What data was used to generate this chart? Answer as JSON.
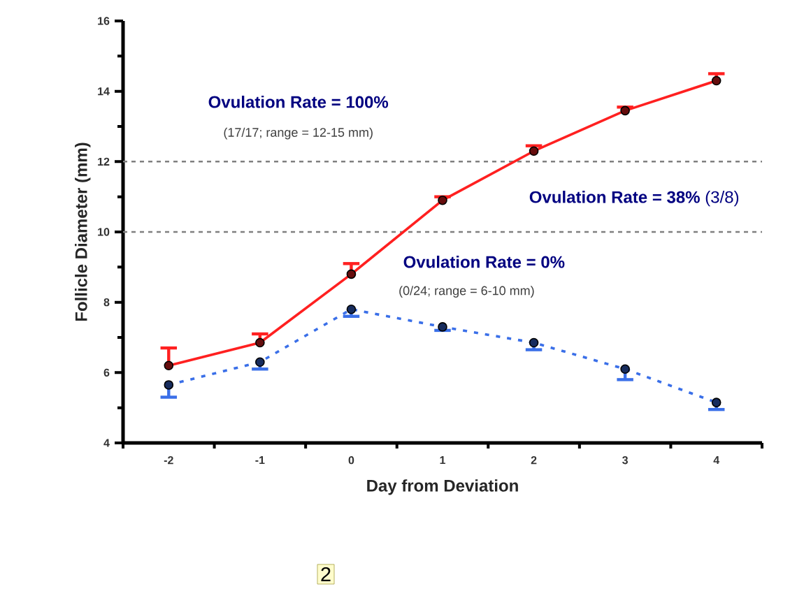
{
  "chart_data": {
    "type": "line",
    "xlabel": "Day from Deviation",
    "ylabel": "Follicle Diameter (mm)",
    "categories": [
      "-2",
      "-1",
      "0",
      "1",
      "2",
      "3",
      "4"
    ],
    "ylim": [
      4,
      16
    ],
    "yticks": [
      4,
      6,
      8,
      10,
      12,
      14,
      16
    ],
    "marker": "circle",
    "series": [
      {
        "color": "#ff2020",
        "line_style": "solid",
        "values": [
          6.2,
          6.85,
          8.8,
          10.9,
          12.3,
          13.45,
          14.3
        ],
        "errors": [
          [
            6.2,
            6.7
          ],
          [
            6.85,
            7.1
          ],
          [
            8.8,
            9.1
          ],
          [
            10.9,
            11.0
          ],
          [
            12.3,
            12.45
          ],
          [
            13.45,
            13.55
          ],
          [
            14.3,
            14.5
          ]
        ]
      },
      {
        "color": "#3a6fe8",
        "line_style": "dotted",
        "values": [
          5.65,
          6.3,
          7.8,
          7.3,
          6.85,
          6.1,
          5.15
        ],
        "errors": [
          [
            5.3,
            5.65
          ],
          [
            6.1,
            6.3
          ],
          [
            7.6,
            7.8
          ],
          [
            7.2,
            7.3
          ],
          [
            6.65,
            6.85
          ],
          [
            5.8,
            6.1
          ],
          [
            4.95,
            5.15
          ]
        ]
      }
    ],
    "ref_lines": [
      {
        "axis": "y",
        "value": 12,
        "color": "#808080",
        "line_style": "dashed"
      },
      {
        "axis": "y",
        "value": 10,
        "color": "#808080",
        "line_style": "dashed"
      }
    ],
    "annotations": [
      "Ovulation Rate = 100%",
      "(17/17; range = 12-15 mm)",
      "**Ovulation Rate = 38%** (3/8)",
      "Ovulation Rate = 0%",
      "(0/24; range = 6-10 mm)",
      "2"
    ]
  }
}
